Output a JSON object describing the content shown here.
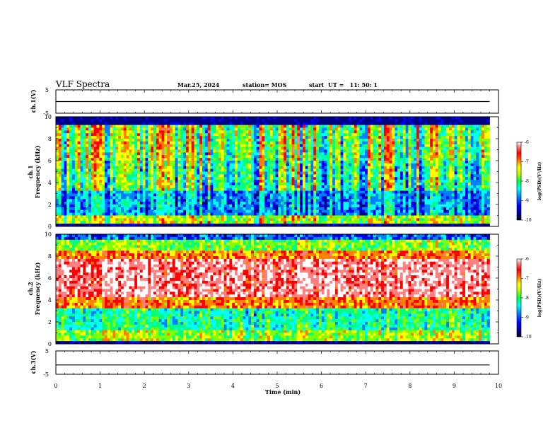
{
  "header": {
    "title": "VLF Spectra",
    "date": "Mar.25, 2024",
    "station": "station= MOS",
    "start": "start  UT =   11: 50: 1"
  },
  "chart_data": [
    {
      "type": "line",
      "panel": "ch1-voltage",
      "ylabel": "ch.1(V)",
      "ylim": [
        -5,
        5
      ],
      "yticks": [
        "5",
        "-5"
      ],
      "xlim": [
        0,
        10
      ],
      "series": [
        {
          "x": [
            0,
            9.8
          ],
          "values": [
            0,
            0
          ]
        }
      ]
    },
    {
      "type": "heatmap",
      "panel": "ch1-spectrogram",
      "ylabel": [
        "ch.1",
        "Frequency (kHz)"
      ],
      "ylim": [
        0,
        10
      ],
      "yticks": [
        "0",
        "2",
        "4",
        "6",
        "8",
        "10"
      ],
      "xlim": [
        0,
        10
      ],
      "colorbar": {
        "label": "log(PSD)(V²/Hz)",
        "range": [
          -10,
          -6
        ],
        "ticks": [
          "-6",
          "-7",
          "-8",
          "-9",
          "-10"
        ]
      }
    },
    {
      "type": "heatmap",
      "panel": "ch2-spectrogram",
      "ylabel": [
        "ch.2",
        "Frequency (kHz)"
      ],
      "ylim": [
        0,
        10
      ],
      "yticks": [
        "0",
        "2",
        "4",
        "6",
        "8",
        "10"
      ],
      "xlim": [
        0,
        10
      ],
      "colorbar": {
        "label": "log(PSD)(V²/Hz)",
        "range": [
          -10,
          -6
        ],
        "ticks": [
          "-6",
          "-7",
          "-8",
          "-9",
          "-10"
        ]
      }
    },
    {
      "type": "line",
      "panel": "ch3-voltage",
      "ylabel": "ch.3(V)",
      "ylim": [
        -5,
        5
      ],
      "yticks": [
        "5",
        "-5"
      ],
      "xlim": [
        0,
        10
      ],
      "xlabel": "Time (min)",
      "xticks": [
        "0",
        "1",
        "2",
        "3",
        "4",
        "5",
        "6",
        "7",
        "8",
        "9",
        "10"
      ],
      "series": [
        {
          "x": [
            0,
            9.8
          ],
          "values": [
            -1,
            -1
          ]
        }
      ]
    }
  ],
  "colors": {
    "scale": [
      "#000080",
      "#0000ff",
      "#0080ff",
      "#00ffff",
      "#00ff80",
      "#80ff00",
      "#ffff00",
      "#ff8000",
      "#ff0000",
      "#ff8080",
      "#ffffff"
    ]
  }
}
